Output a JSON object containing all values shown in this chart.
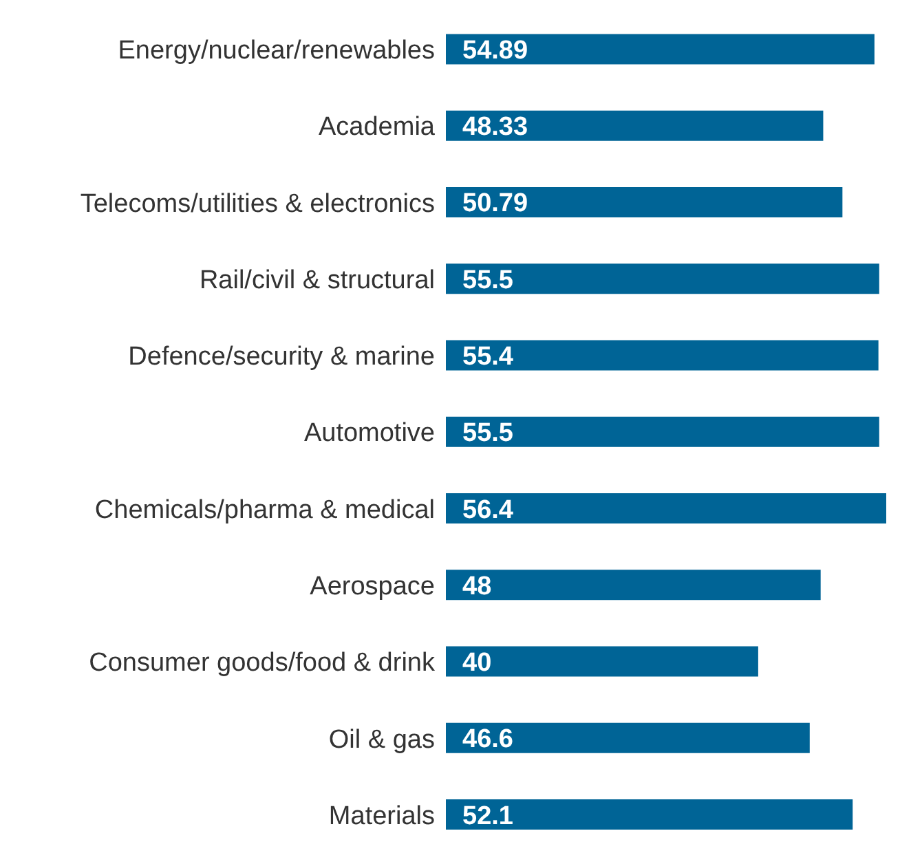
{
  "chart_data": {
    "type": "bar",
    "orientation": "horizontal",
    "data_labels": true,
    "grid": false,
    "legend": false,
    "categories": [
      "Energy/nuclear/renewables",
      "Academia",
      "Telecoms/utilities & electronics",
      "Rail/civil & structural",
      "Defence/security & marine",
      "Automotive",
      "Chemicals/pharma & medical",
      "Aerospace",
      "Consumer goods/food & drink",
      "Oil & gas",
      "Materials"
    ],
    "values": [
      54.89,
      48.33,
      50.79,
      55.5,
      55.4,
      55.5,
      56.4,
      48,
      40,
      46.6,
      52.1
    ],
    "color": "#006496"
  }
}
